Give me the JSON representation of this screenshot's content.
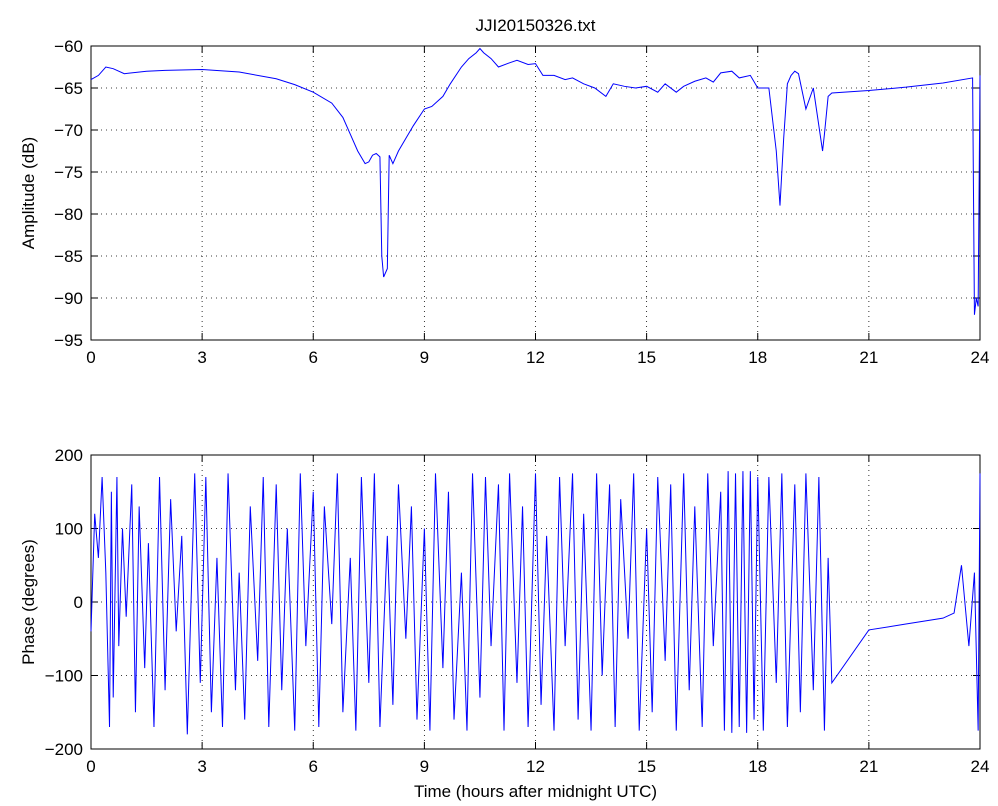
{
  "chart_data": [
    {
      "type": "line",
      "title": "JJI20150326.txt",
      "xlabel": "",
      "ylabel": "Amplitude (dB)",
      "xlim": [
        0,
        24
      ],
      "ylim": [
        -95,
        -60
      ],
      "xticks": [
        "0",
        "3",
        "6",
        "9",
        "12",
        "15",
        "18",
        "21",
        "24"
      ],
      "yticks": [
        "-95",
        "-90",
        "-85",
        "-80",
        "-75",
        "-70",
        "-65",
        "-60"
      ],
      "grid": true,
      "color": "#0000ff",
      "series": [
        {
          "x": [
            0,
            0.2,
            0.4,
            0.6,
            0.9,
            1.5,
            2,
            3,
            4,
            5,
            5.5,
            6,
            6.5,
            6.8,
            7.0,
            7.2,
            7.4,
            7.5,
            7.6,
            7.7,
            7.8,
            7.85,
            7.9,
            8.0,
            8.05,
            8.1,
            8.15,
            8.2,
            8.3,
            8.5,
            8.7,
            9.0,
            9.2,
            9.5,
            9.7,
            10.0,
            10.2,
            10.4,
            10.5,
            10.6,
            10.8,
            11.0,
            11.3,
            11.5,
            11.8,
            12.0,
            12.2,
            12.5,
            12.8,
            13.0,
            13.3,
            13.6,
            13.9,
            14.1,
            14.4,
            14.7,
            15.0,
            15.3,
            15.5,
            15.8,
            16.0,
            16.3,
            16.6,
            16.8,
            17.0,
            17.3,
            17.5,
            17.8,
            18.0,
            18.3,
            18.5,
            18.6,
            18.7,
            18.8,
            18.9,
            19.0,
            19.1,
            19.3,
            19.5,
            19.7,
            19.75,
            19.8,
            19.9,
            20.0,
            21.0,
            22.0,
            23.0,
            23.8,
            23.85,
            23.9,
            23.95,
            24.0
          ],
          "y": [
            -64,
            -63.5,
            -62.5,
            -62.7,
            -63.3,
            -63.0,
            -62.9,
            -62.8,
            -63.1,
            -63.9,
            -64.6,
            -65.5,
            -66.8,
            -68.5,
            -70.5,
            -72.5,
            -74.0,
            -73.8,
            -73.0,
            -72.8,
            -73.2,
            -85.0,
            -87.5,
            -86.5,
            -73.0,
            -73.5,
            -74.0,
            -73.5,
            -72.5,
            -71.0,
            -69.5,
            -67.5,
            -67.2,
            -66.0,
            -64.5,
            -62.5,
            -61.5,
            -60.8,
            -60.3,
            -60.8,
            -61.5,
            -62.5,
            -62.0,
            -61.7,
            -62.2,
            -62.1,
            -63.5,
            -63.5,
            -64.0,
            -63.8,
            -64.5,
            -65.0,
            -66.0,
            -64.5,
            -64.8,
            -65.0,
            -64.8,
            -65.5,
            -64.5,
            -65.5,
            -64.8,
            -64.2,
            -63.8,
            -64.3,
            -63.2,
            -63.0,
            -63.8,
            -63.5,
            -65.0,
            -65.0,
            -72.5,
            -79.0,
            -71.0,
            -64.5,
            -63.5,
            -63.0,
            -63.3,
            -67.5,
            -65.0,
            -71.0,
            -72.5,
            -70.5,
            -66.0,
            -65.6,
            -65.3,
            -64.9,
            -64.4,
            -63.8,
            -92.0,
            -90.0,
            -91.0,
            -63.5
          ]
        }
      ]
    },
    {
      "type": "line",
      "title": "",
      "xlabel": "Time (hours after midnight UTC)",
      "ylabel": "Phase (degrees)",
      "xlim": [
        0,
        24
      ],
      "ylim": [
        -200,
        200
      ],
      "xticks": [
        "0",
        "3",
        "6",
        "9",
        "12",
        "15",
        "18",
        "21",
        "24"
      ],
      "yticks": [
        "-200",
        "-100",
        "0",
        "100",
        "200"
      ],
      "grid": true,
      "color": "#0000ff",
      "series": [
        {
          "x": [
            0,
            0.1,
            0.2,
            0.3,
            0.4,
            0.5,
            0.55,
            0.6,
            0.7,
            0.75,
            0.85,
            0.95,
            1.1,
            1.2,
            1.3,
            1.45,
            1.55,
            1.7,
            1.85,
            2.0,
            2.15,
            2.3,
            2.45,
            2.6,
            2.8,
            2.95,
            3.1,
            3.25,
            3.4,
            3.55,
            3.7,
            3.9,
            4.0,
            4.15,
            4.3,
            4.5,
            4.65,
            4.8,
            5.0,
            5.15,
            5.3,
            5.5,
            5.65,
            5.8,
            6.0,
            6.15,
            6.3,
            6.5,
            6.65,
            6.8,
            7.0,
            7.15,
            7.3,
            7.5,
            7.65,
            7.8,
            8.0,
            8.15,
            8.3,
            8.5,
            8.65,
            8.8,
            9.0,
            9.15,
            9.3,
            9.5,
            9.65,
            9.8,
            10.0,
            10.15,
            10.3,
            10.5,
            10.65,
            10.8,
            11.0,
            11.15,
            11.3,
            11.5,
            11.65,
            11.8,
            12.0,
            12.15,
            12.3,
            12.5,
            12.65,
            12.8,
            13.0,
            13.15,
            13.3,
            13.5,
            13.65,
            13.8,
            14.0,
            14.15,
            14.3,
            14.5,
            14.65,
            14.8,
            15.0,
            15.15,
            15.3,
            15.5,
            15.65,
            15.8,
            16.0,
            16.15,
            16.3,
            16.5,
            16.65,
            16.8,
            17.0,
            17.1,
            17.2,
            17.3,
            17.4,
            17.5,
            17.6,
            17.7,
            17.8,
            17.9,
            18.0,
            18.15,
            18.3,
            18.5,
            18.65,
            18.8,
            19.0,
            19.15,
            19.3,
            19.5,
            19.65,
            19.8,
            19.9,
            20.0,
            21.0,
            22.0,
            23.0,
            23.3,
            23.5,
            23.7,
            23.85,
            23.95,
            24.0
          ],
          "y": [
            -40,
            120,
            60,
            170,
            40,
            -170,
            150,
            -130,
            170,
            -60,
            100,
            -20,
            160,
            -150,
            130,
            -90,
            80,
            -170,
            170,
            -120,
            140,
            -40,
            90,
            -180,
            175,
            -110,
            170,
            -150,
            60,
            -170,
            175,
            -120,
            40,
            -160,
            130,
            -80,
            170,
            -170,
            160,
            -120,
            100,
            -175,
            175,
            -60,
            150,
            -170,
            130,
            -30,
            175,
            -150,
            60,
            -175,
            170,
            -110,
            175,
            -170,
            90,
            -140,
            160,
            -50,
            130,
            -160,
            100,
            -175,
            175,
            -90,
            150,
            -160,
            40,
            -175,
            175,
            -130,
            170,
            -60,
            160,
            -175,
            175,
            -110,
            130,
            -170,
            175,
            -140,
            90,
            -175,
            170,
            -60,
            175,
            -160,
            120,
            -175,
            175,
            -100,
            160,
            -170,
            140,
            -50,
            175,
            -175,
            100,
            -150,
            170,
            -80,
            160,
            -175,
            175,
            -120,
            130,
            -170,
            175,
            -60,
            150,
            -175,
            178,
            -178,
            175,
            -170,
            178,
            -178,
            178,
            -160,
            170,
            -175,
            170,
            -110,
            175,
            -170,
            160,
            -150,
            175,
            -120,
            170,
            -175,
            60,
            -110,
            -38,
            -30,
            -22,
            -15,
            50,
            -60,
            40,
            -175,
            175
          ]
        }
      ]
    }
  ]
}
